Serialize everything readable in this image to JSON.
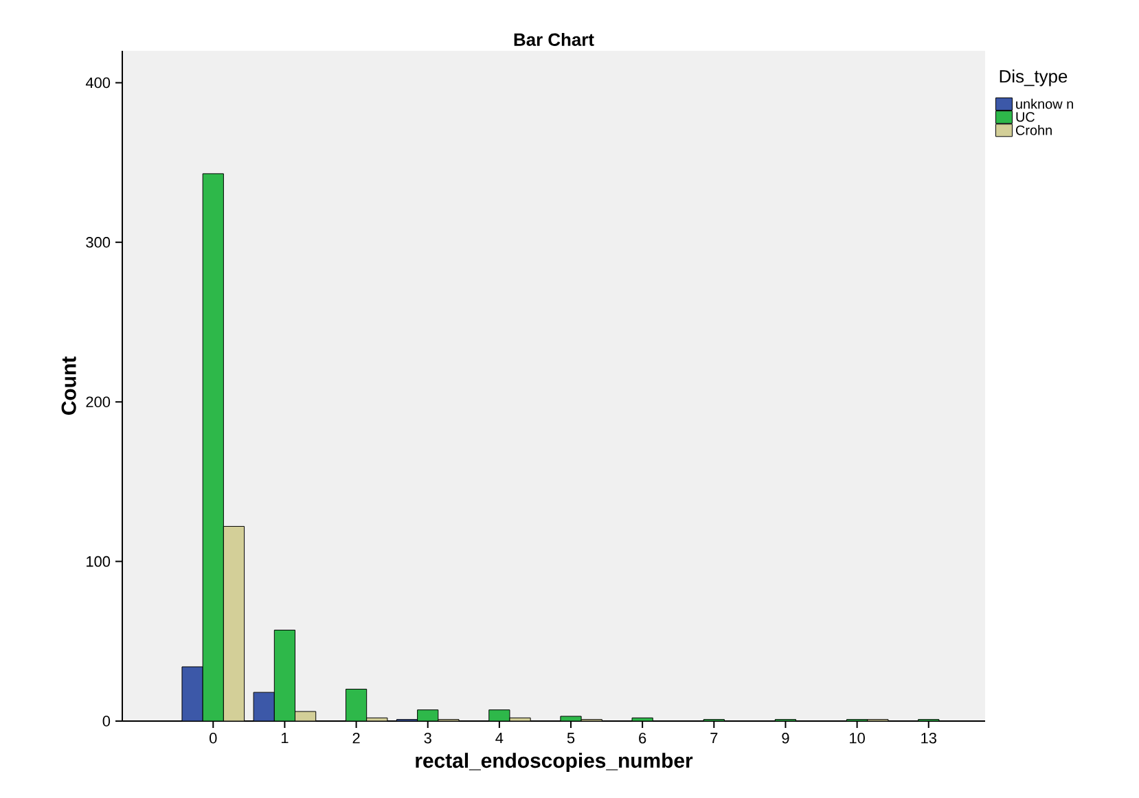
{
  "chart_data": {
    "type": "bar",
    "title": "Bar Chart",
    "xlabel": "rectal_endoscopies_number",
    "ylabel": "Count",
    "legend_title": "Dis_type",
    "categories": [
      "0",
      "1",
      "2",
      "3",
      "4",
      "5",
      "6",
      "7",
      "9",
      "10",
      "13"
    ],
    "series": [
      {
        "name": "unknow n",
        "color": "#3c58a8",
        "values": [
          34,
          18,
          null,
          1,
          null,
          null,
          null,
          null,
          null,
          null,
          null
        ]
      },
      {
        "name": "UC",
        "color": "#2eb84a",
        "values": [
          343,
          57,
          20,
          7,
          7,
          3,
          2,
          1,
          1,
          1,
          1
        ]
      },
      {
        "name": "Crohn",
        "color": "#d3cf98",
        "values": [
          122,
          6,
          2,
          1,
          2,
          1,
          null,
          null,
          null,
          1,
          null
        ]
      }
    ],
    "ylim": [
      0,
      420
    ],
    "yticks": [
      0,
      100,
      200,
      300,
      400
    ],
    "legend": "right",
    "grid": false
  }
}
